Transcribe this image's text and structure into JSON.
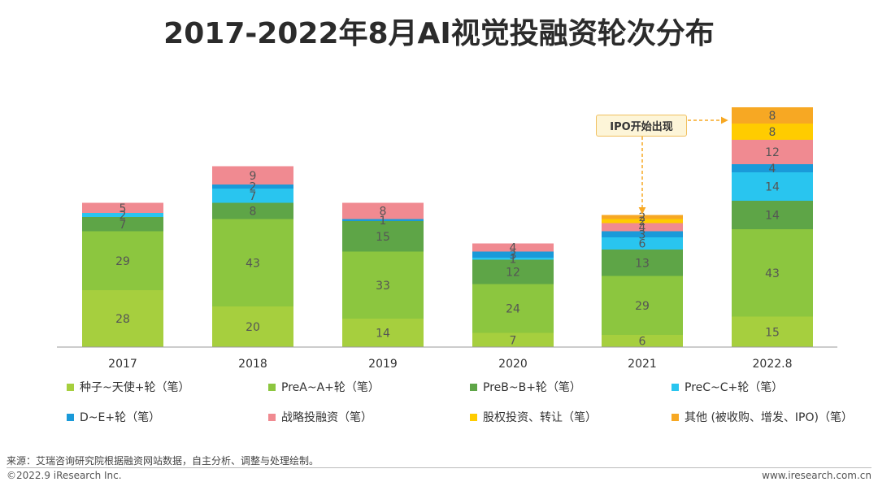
{
  "title": "2017-2022年8月AI视觉投融资轮次分布",
  "chart_data": {
    "type": "bar",
    "stacked": true,
    "categories": [
      "2017",
      "2018",
      "2019",
      "2020",
      "2021",
      "2022.8"
    ],
    "series": [
      {
        "name": "种子~天使+轮（笔）",
        "color": "#a6cf3e",
        "values": [
          28,
          20,
          14,
          7,
          6,
          15
        ]
      },
      {
        "name": "PreA~A+轮（笔）",
        "color": "#8cc63f",
        "values": [
          29,
          43,
          33,
          24,
          29,
          43
        ]
      },
      {
        "name": "PreB~B+轮（笔）",
        "color": "#5ea547",
        "values": [
          7,
          8,
          15,
          12,
          13,
          14
        ]
      },
      {
        "name": "PreC~C+轮（笔）",
        "color": "#29c5ef",
        "values": [
          2,
          7,
          0,
          1,
          6,
          14
        ]
      },
      {
        "name": "D~E+轮（笔）",
        "color": "#1a9ad9",
        "values": [
          0,
          2,
          1,
          3,
          3,
          4
        ]
      },
      {
        "name": "战略投融资（笔）",
        "color": "#f08a91",
        "values": [
          5,
          9,
          8,
          4,
          4,
          12
        ]
      },
      {
        "name": "股权投资、转让（笔）",
        "color": "#ffcc00",
        "values": [
          0,
          0,
          0,
          0,
          2,
          8
        ]
      },
      {
        "name": "其他 (被收购、增发、IPO)（笔）",
        "color": "#f7a823",
        "values": [
          0,
          0,
          0,
          0,
          2,
          8
        ]
      }
    ],
    "legend_position": "bottom",
    "grid": false,
    "annotation": "IPO开始出现"
  },
  "footer": {
    "source": "来源：艾瑞咨询研究院根据融资网站数据，自主分析、调整与处理绘制。",
    "copyright": "©2022.9 iResearch Inc.",
    "website": "www.iresearch.com.cn"
  }
}
